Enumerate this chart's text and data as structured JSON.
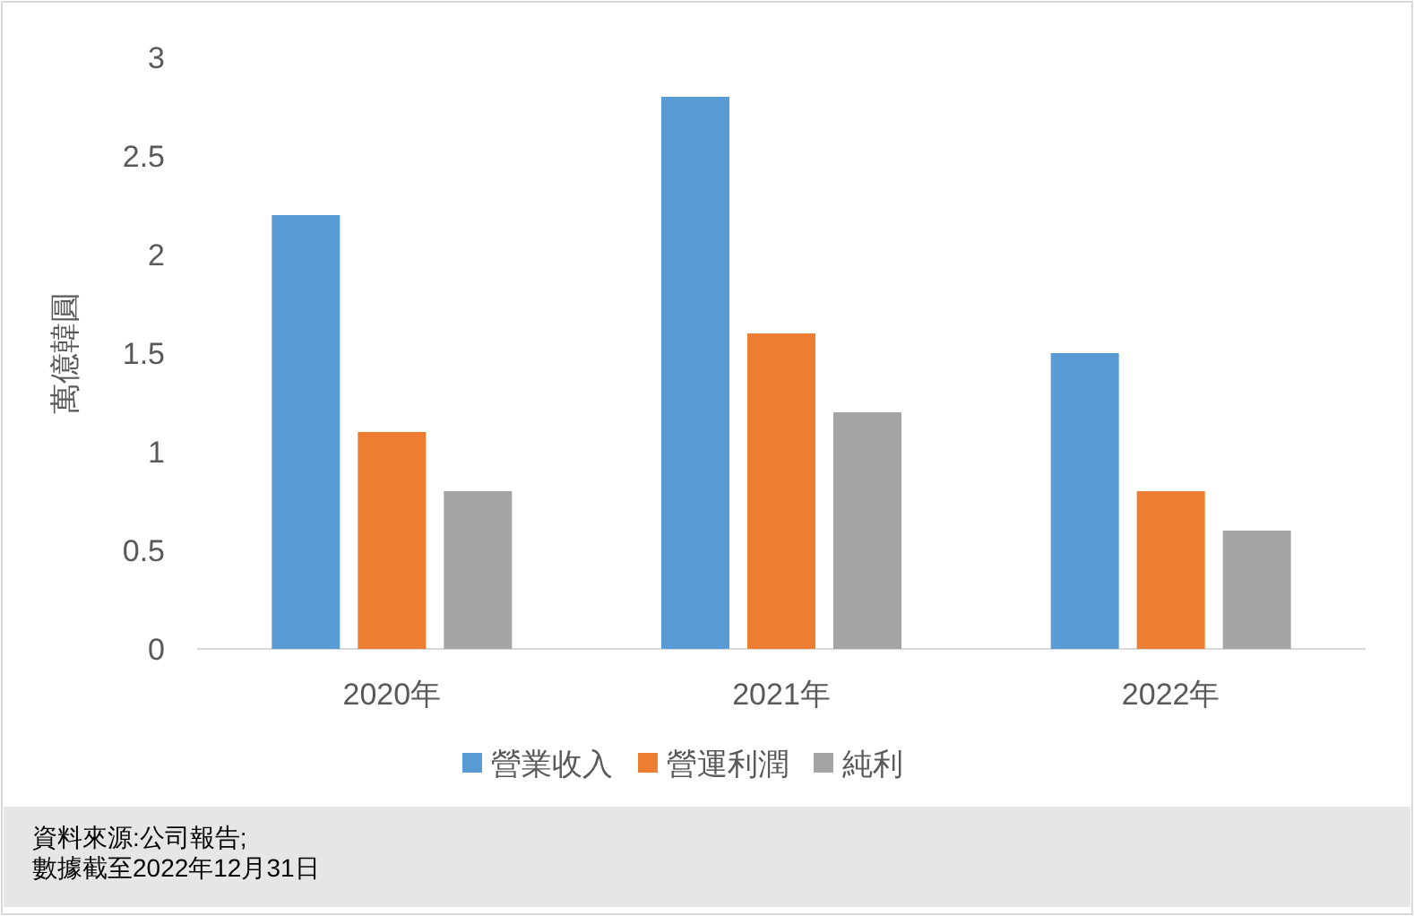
{
  "chart_data": {
    "type": "bar",
    "ylabel": "萬億韓圓",
    "categories": [
      "2020年",
      "2021年",
      "2022年"
    ],
    "series": [
      {
        "name": "營業收入",
        "color": "#5b9bd5",
        "values": [
          2.2,
          2.8,
          1.5
        ]
      },
      {
        "name": "營運利潤",
        "color": "#ed7d31",
        "values": [
          1.1,
          1.6,
          0.8
        ]
      },
      {
        "name": "純利",
        "color": "#a5a5a5",
        "values": [
          0.8,
          1.2,
          0.6
        ]
      }
    ],
    "ylim": [
      0,
      3
    ],
    "yticks": [
      0,
      0.5,
      1,
      1.5,
      2,
      2.5,
      3
    ],
    "grid": false,
    "legend": "bottom",
    "annotations": [
      "資料來源:公司報告;",
      "數據截至2022年12月31日"
    ]
  }
}
